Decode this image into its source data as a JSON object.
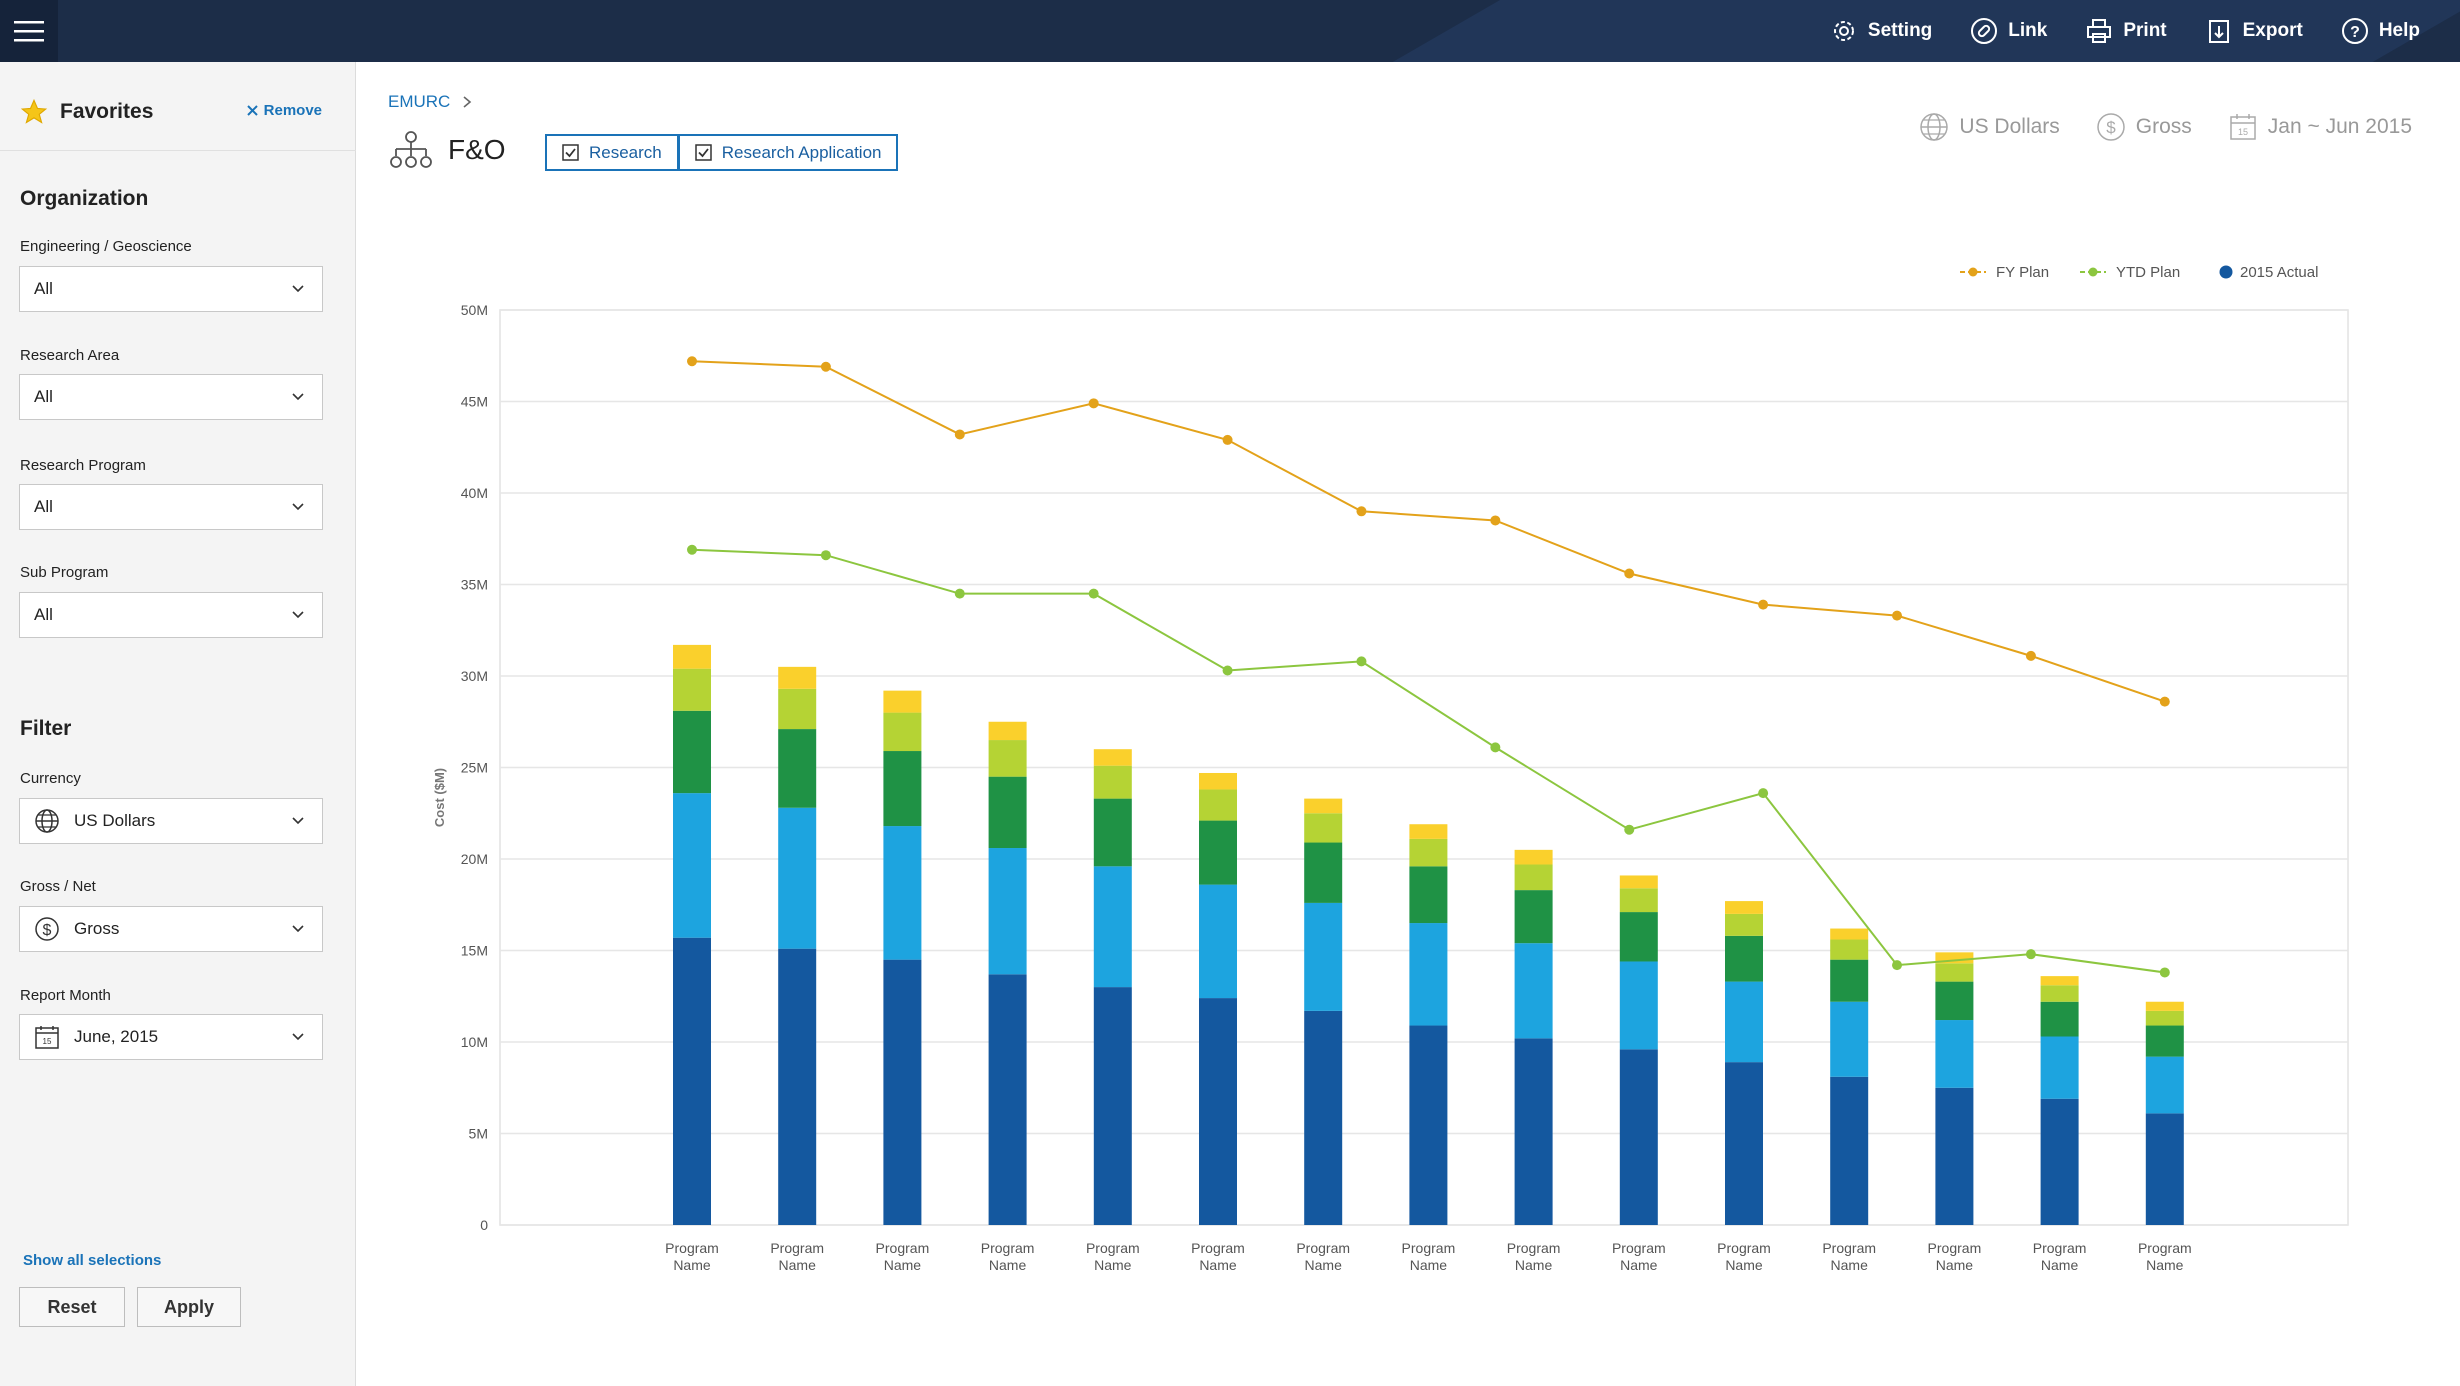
{
  "topbar": {
    "menu_icon": "hamburger-icon",
    "actions": [
      {
        "label": "Setting",
        "icon": "gear-icon"
      },
      {
        "label": "Link",
        "icon": "link-icon"
      },
      {
        "label": "Print",
        "icon": "printer-icon"
      },
      {
        "label": "Export",
        "icon": "export-icon"
      },
      {
        "label": "Help",
        "icon": "help-icon"
      }
    ]
  },
  "sidebar": {
    "favorites_title": "Favorites",
    "remove_label": "Remove",
    "organization": {
      "title": "Organization",
      "fields": [
        {
          "label": "Engineering / Geoscience",
          "value": "All"
        },
        {
          "label": "Research Area",
          "value": "All"
        },
        {
          "label": "Research Program",
          "value": "All"
        },
        {
          "label": "Sub Program",
          "value": "All"
        }
      ]
    },
    "filter": {
      "title": "Filter",
      "fields": [
        {
          "label": "Currency",
          "value": "US Dollars",
          "icon": "globe-icon"
        },
        {
          "label": "Gross / Net",
          "value": "Gross",
          "icon": "dollar-icon"
        },
        {
          "label": "Report Month",
          "value": "June, 2015",
          "icon": "calendar-icon"
        }
      ]
    },
    "show_all_label": "Show all selections",
    "reset_label": "Reset",
    "apply_label": "Apply"
  },
  "main": {
    "breadcrumb": "EMURC",
    "title": "F&O",
    "toggles": [
      {
        "label": "Research",
        "checked": true
      },
      {
        "label": "Research Application",
        "checked": true
      }
    ],
    "meta": {
      "currency": "US Dollars",
      "gross": "Gross",
      "date_range": "Jan ~ Jun 2015",
      "calendar_day": "15"
    }
  },
  "colors": {
    "topbar": "#1c2d48",
    "accent": "#1a73b8",
    "fy_plan": "#e3a21a",
    "ytd_plan": "#8cc63f",
    "seg_dark_blue": "#14589f",
    "seg_light_blue": "#1da4df",
    "seg_green": "#1f9245",
    "seg_lime": "#b5d334",
    "seg_yellow": "#fad02c"
  },
  "chart_data": {
    "type": "bar",
    "stacked": true,
    "ylabel": "Cost ($M)",
    "ylim": [
      0,
      50
    ],
    "yticks": [
      {
        "v": 0,
        "label": "0"
      },
      {
        "v": 5,
        "label": "5M"
      },
      {
        "v": 10,
        "label": "10M"
      },
      {
        "v": 15,
        "label": "15M"
      },
      {
        "v": 20,
        "label": "20M"
      },
      {
        "v": 25,
        "label": "25M"
      },
      {
        "v": 30,
        "label": "30M"
      },
      {
        "v": 35,
        "label": "35M"
      },
      {
        "v": 40,
        "label": "40M"
      },
      {
        "v": 45,
        "label": "45M"
      },
      {
        "v": 50,
        "label": "50M"
      }
    ],
    "categories": [
      "Program Name",
      "Program Name",
      "Program Name",
      "Program Name",
      "Program Name",
      "Program Name",
      "Program Name",
      "Program Name",
      "Program Name",
      "Program Name",
      "Program Name",
      "Program Name",
      "Program Name",
      "Program Name",
      "Program Name"
    ],
    "legend": [
      "FY Plan",
      "YTD Plan",
      "2015 Actual"
    ],
    "stack_series": [
      {
        "name": "segment-1",
        "values": [
          15.7,
          15.1,
          14.5,
          13.7,
          13.0,
          12.4,
          11.7,
          10.9,
          10.2,
          9.6,
          8.9,
          8.1,
          7.5,
          6.9,
          6.1
        ]
      },
      {
        "name": "segment-2",
        "values": [
          7.9,
          7.7,
          7.3,
          6.9,
          6.6,
          6.2,
          5.9,
          5.6,
          5.2,
          4.8,
          4.4,
          4.1,
          3.7,
          3.4,
          3.1
        ]
      },
      {
        "name": "segment-3",
        "values": [
          4.5,
          4.3,
          4.1,
          3.9,
          3.7,
          3.5,
          3.3,
          3.1,
          2.9,
          2.7,
          2.5,
          2.3,
          2.1,
          1.9,
          1.7
        ]
      },
      {
        "name": "segment-4",
        "values": [
          2.3,
          2.2,
          2.1,
          2.0,
          1.8,
          1.7,
          1.6,
          1.5,
          1.4,
          1.3,
          1.2,
          1.1,
          1.0,
          0.9,
          0.8
        ]
      },
      {
        "name": "segment-5",
        "values": [
          1.3,
          1.2,
          1.2,
          1.0,
          0.9,
          0.9,
          0.8,
          0.8,
          0.8,
          0.7,
          0.7,
          0.6,
          0.6,
          0.5,
          0.5
        ]
      }
    ],
    "line_series": [
      {
        "name": "FY Plan",
        "values": [
          47.2,
          46.9,
          43.2,
          44.9,
          42.9,
          39.0,
          38.5,
          35.6,
          33.9,
          33.3,
          31.1,
          28.6,
          null,
          null,
          null
        ]
      },
      {
        "name": "YTD Plan",
        "values": [
          36.9,
          36.6,
          34.5,
          34.5,
          30.3,
          30.8,
          26.1,
          21.6,
          23.6,
          14.2,
          14.8,
          13.8,
          null,
          null,
          null
        ]
      }
    ]
  }
}
